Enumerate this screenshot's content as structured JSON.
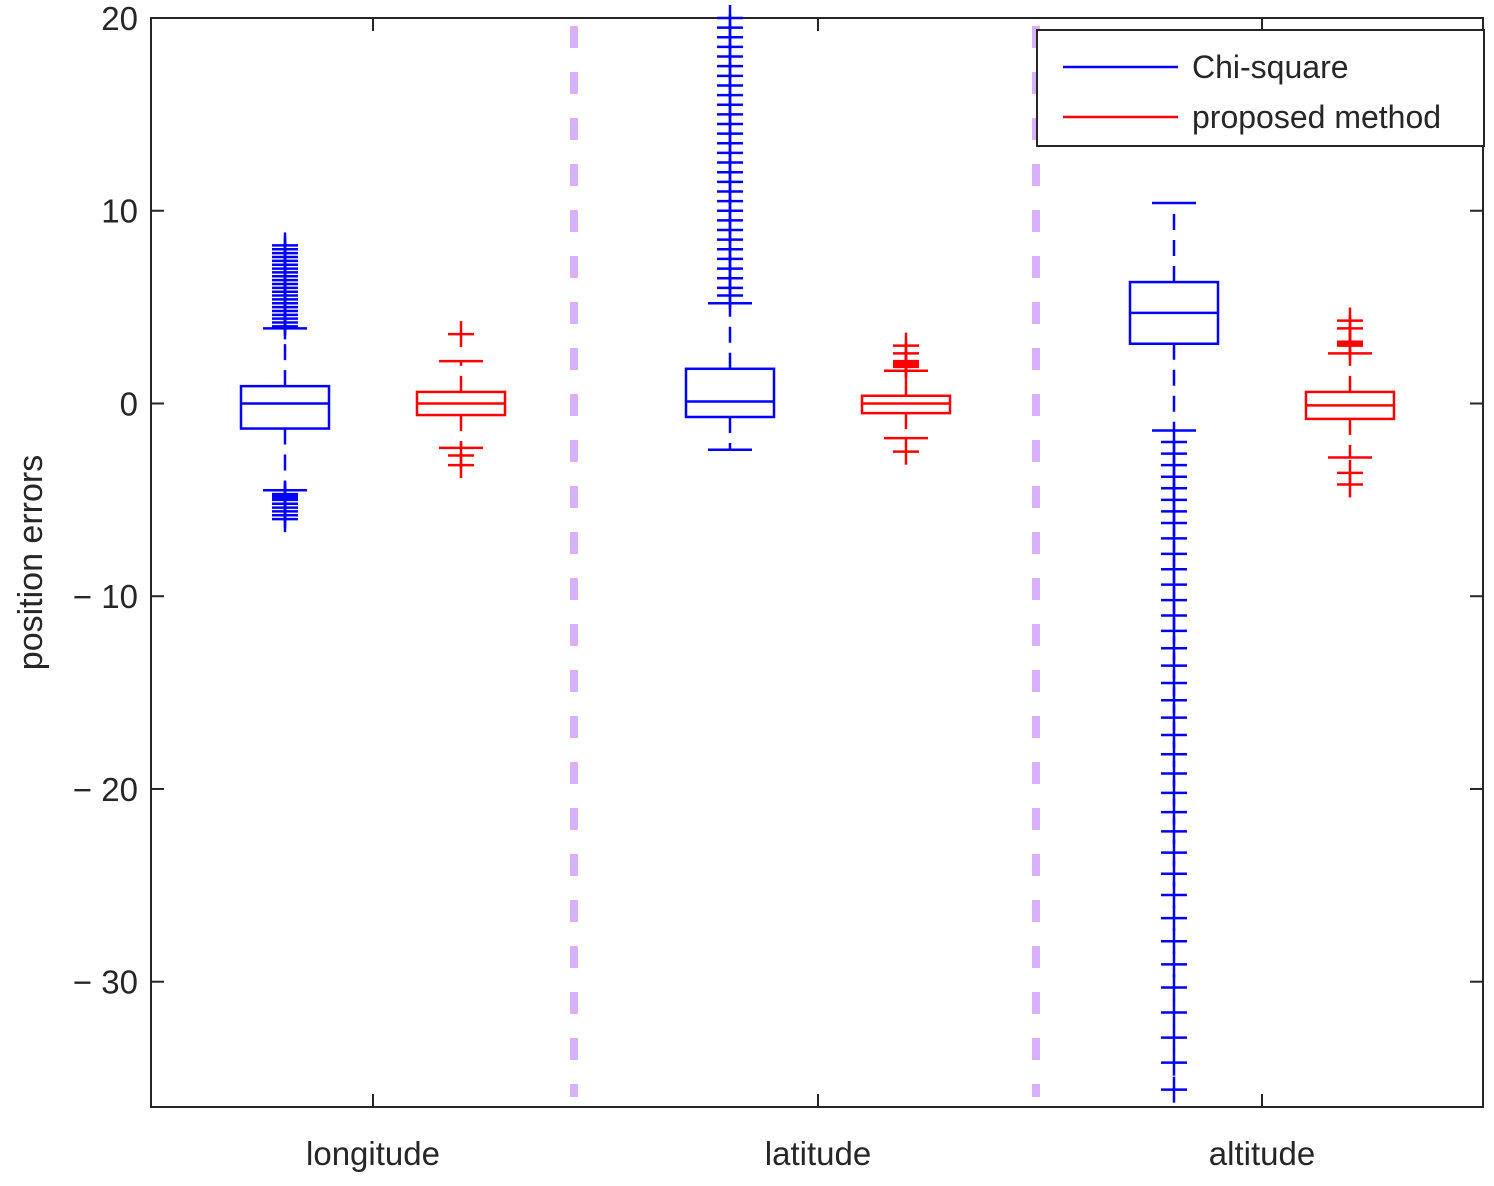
{
  "chart_data": {
    "type": "boxplot",
    "title": "",
    "xlabel": "",
    "ylabel": "position errors",
    "ylim": [
      -36.5,
      20
    ],
    "yticks": [
      20,
      10,
      0,
      -10,
      -20,
      -30
    ],
    "ytick_labels": [
      "20",
      "10",
      "0",
      "− 10",
      "− 20",
      "− 30"
    ],
    "grid": false,
    "legend_position": "top-right",
    "categories": [
      "longitude",
      "latitude",
      "altitude"
    ],
    "group_separators": "dashed vertical lines between groups",
    "series": [
      {
        "name": "Chi-square",
        "color": "#0000ff",
        "boxes": [
          {
            "category": "longitude",
            "whisker_low": -4.5,
            "q1": -1.3,
            "median": 0.0,
            "q3": 0.9,
            "whisker_high": 3.9,
            "outliers": [
              -6.0,
              -5.8,
              -5.6,
              -5.4,
              -5.2,
              -5.0,
              -4.9,
              -4.8,
              -4.7,
              4.0,
              4.2,
              4.4,
              4.6,
              4.8,
              5.0,
              5.2,
              5.4,
              5.6,
              5.8,
              6.0,
              6.2,
              6.4,
              6.6,
              6.8,
              7.0,
              7.2,
              7.4,
              7.6,
              7.8,
              8.0,
              8.2
            ]
          },
          {
            "category": "latitude",
            "whisker_low": -2.4,
            "q1": -0.7,
            "median": 0.1,
            "q3": 1.8,
            "whisker_high": 5.2,
            "outliers": [
              5.6,
              6.0,
              6.5,
              7.0,
              7.5,
              8.0,
              8.5,
              9.0,
              9.5,
              10.0,
              10.5,
              11.0,
              11.5,
              12.0,
              12.5,
              13.0,
              13.5,
              14.0,
              14.5,
              15.0,
              15.5,
              16.0,
              16.5,
              17.0,
              17.5,
              18.0,
              18.5,
              19.0,
              19.5,
              20.0
            ]
          },
          {
            "category": "altitude",
            "whisker_low": -1.4,
            "q1": 3.1,
            "median": 4.7,
            "q3": 6.3,
            "whisker_high": 10.4,
            "outliers": [
              -2.0,
              -2.6,
              -3.2,
              -3.8,
              -4.4,
              -5.0,
              -5.6,
              -6.2,
              -7.0,
              -7.8,
              -8.6,
              -9.4,
              -10.2,
              -11.0,
              -11.8,
              -12.7,
              -13.6,
              -14.5,
              -15.4,
              -16.3,
              -17.2,
              -18.2,
              -19.2,
              -20.2,
              -21.2,
              -22.2,
              -23.3,
              -24.4,
              -25.5,
              -26.7,
              -27.9,
              -29.1,
              -30.3,
              -31.6,
              -32.9,
              -34.2,
              -35.6
            ]
          }
        ]
      },
      {
        "name": "proposed method",
        "color": "#ff0000",
        "boxes": [
          {
            "category": "longitude",
            "whisker_low": -2.3,
            "q1": -0.6,
            "median": 0.0,
            "q3": 0.6,
            "whisker_high": 2.2,
            "outliers": [
              -2.7,
              -3.2,
              3.6
            ]
          },
          {
            "category": "latitude",
            "whisker_low": -1.8,
            "q1": -0.5,
            "median": 0.0,
            "q3": 0.4,
            "whisker_high": 1.7,
            "outliers": [
              -2.5,
              1.9,
              2.0,
              2.1,
              2.2,
              2.6,
              3.0
            ]
          },
          {
            "category": "altitude",
            "whisker_low": -2.8,
            "q1": -0.8,
            "median": -0.1,
            "q3": 0.6,
            "whisker_high": 2.6,
            "outliers": [
              -3.6,
              -4.2,
              3.0,
              3.1,
              3.2,
              3.9,
              4.3
            ]
          }
        ]
      }
    ]
  }
}
